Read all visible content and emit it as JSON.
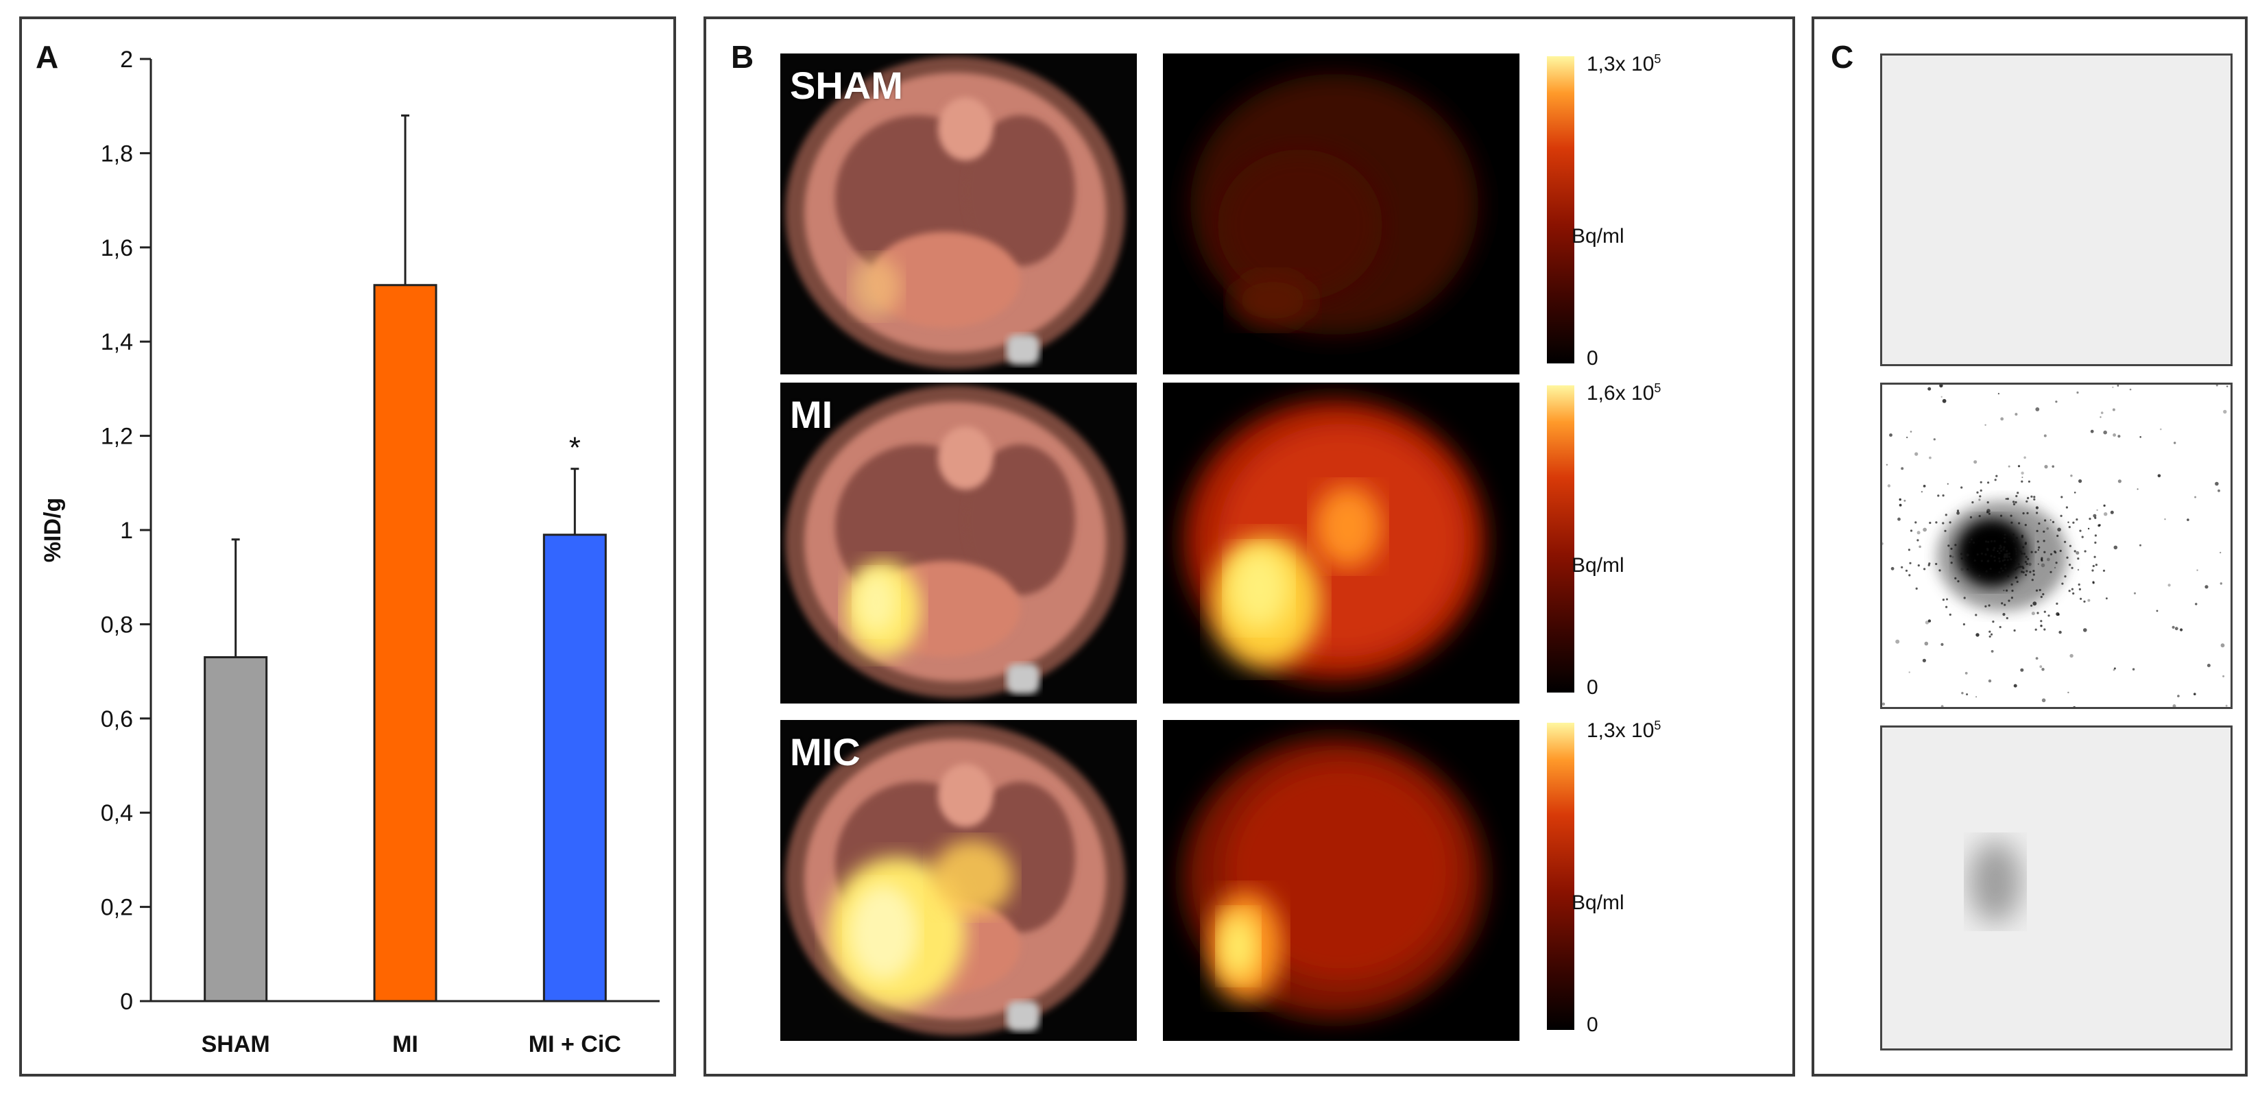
{
  "panel_a": {
    "letter": "A",
    "chart_data": {
      "type": "bar",
      "categories": [
        "SHAM",
        "MI",
        "MI + CiC"
      ],
      "values": [
        0.73,
        1.52,
        0.99
      ],
      "errors": [
        0.25,
        0.36,
        0.14
      ],
      "colors": [
        "#9e9e9e",
        "#ff6600",
        "#3366ff"
      ],
      "ylabel": "%ID/g",
      "ylim": [
        0,
        2
      ],
      "yticks": [
        "0",
        "0,2",
        "0,4",
        "0,6",
        "0,8",
        "1",
        "1,2",
        "1,4",
        "1,6",
        "1,8",
        "2"
      ],
      "annotations": [
        {
          "category": "MI + CiC",
          "text": "*"
        }
      ],
      "grid": false,
      "legend": "none"
    }
  },
  "panel_b": {
    "letter": "B",
    "rows": [
      {
        "label": "SHAM",
        "scale_max": "1,3x 10",
        "scale_exp": "5",
        "unit": "Bq/ml",
        "zero": "0"
      },
      {
        "label": "MI",
        "scale_max": "1,6x 10",
        "scale_exp": "5",
        "unit": "Bq/ml",
        "zero": "0"
      },
      {
        "label": "MIC",
        "scale_max": "1,3x 10",
        "scale_exp": "5",
        "unit": "Bq/ml",
        "zero": "0"
      }
    ]
  },
  "panel_c": {
    "letter": "C"
  }
}
